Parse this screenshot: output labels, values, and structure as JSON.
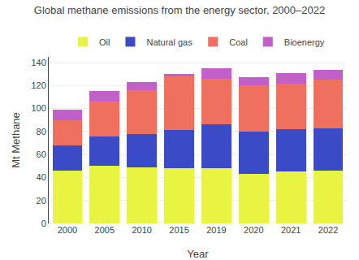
{
  "chart_data": {
    "type": "bar",
    "stacked": true,
    "title": "Global methane emissions from the energy sector, 2000–2022",
    "xlabel": "Year",
    "ylabel": "Mt Methane",
    "categories": [
      "2000",
      "2005",
      "2010",
      "2015",
      "2019",
      "2020",
      "2021",
      "2022"
    ],
    "series": [
      {
        "name": "Oil",
        "color": "#e8f441",
        "values": [
          46,
          50,
          49,
          48,
          48,
          43,
          45,
          46
        ]
      },
      {
        "name": "Natural gas",
        "color": "#3b4bc8",
        "values": [
          22,
          26,
          29,
          33,
          38,
          37,
          37,
          37
        ]
      },
      {
        "name": "Coal",
        "color": "#f07060",
        "values": [
          22,
          30,
          38,
          47,
          40,
          40,
          40,
          42
        ]
      },
      {
        "name": "Bioenergy",
        "color": "#c060c8",
        "values": [
          9,
          9,
          7,
          2,
          9,
          7,
          9,
          9
        ]
      }
    ],
    "ylim": [
      0,
      145
    ],
    "yticks": [
      0,
      20,
      40,
      60,
      80,
      100,
      120,
      140
    ],
    "grid": true,
    "legend": "upper center"
  }
}
